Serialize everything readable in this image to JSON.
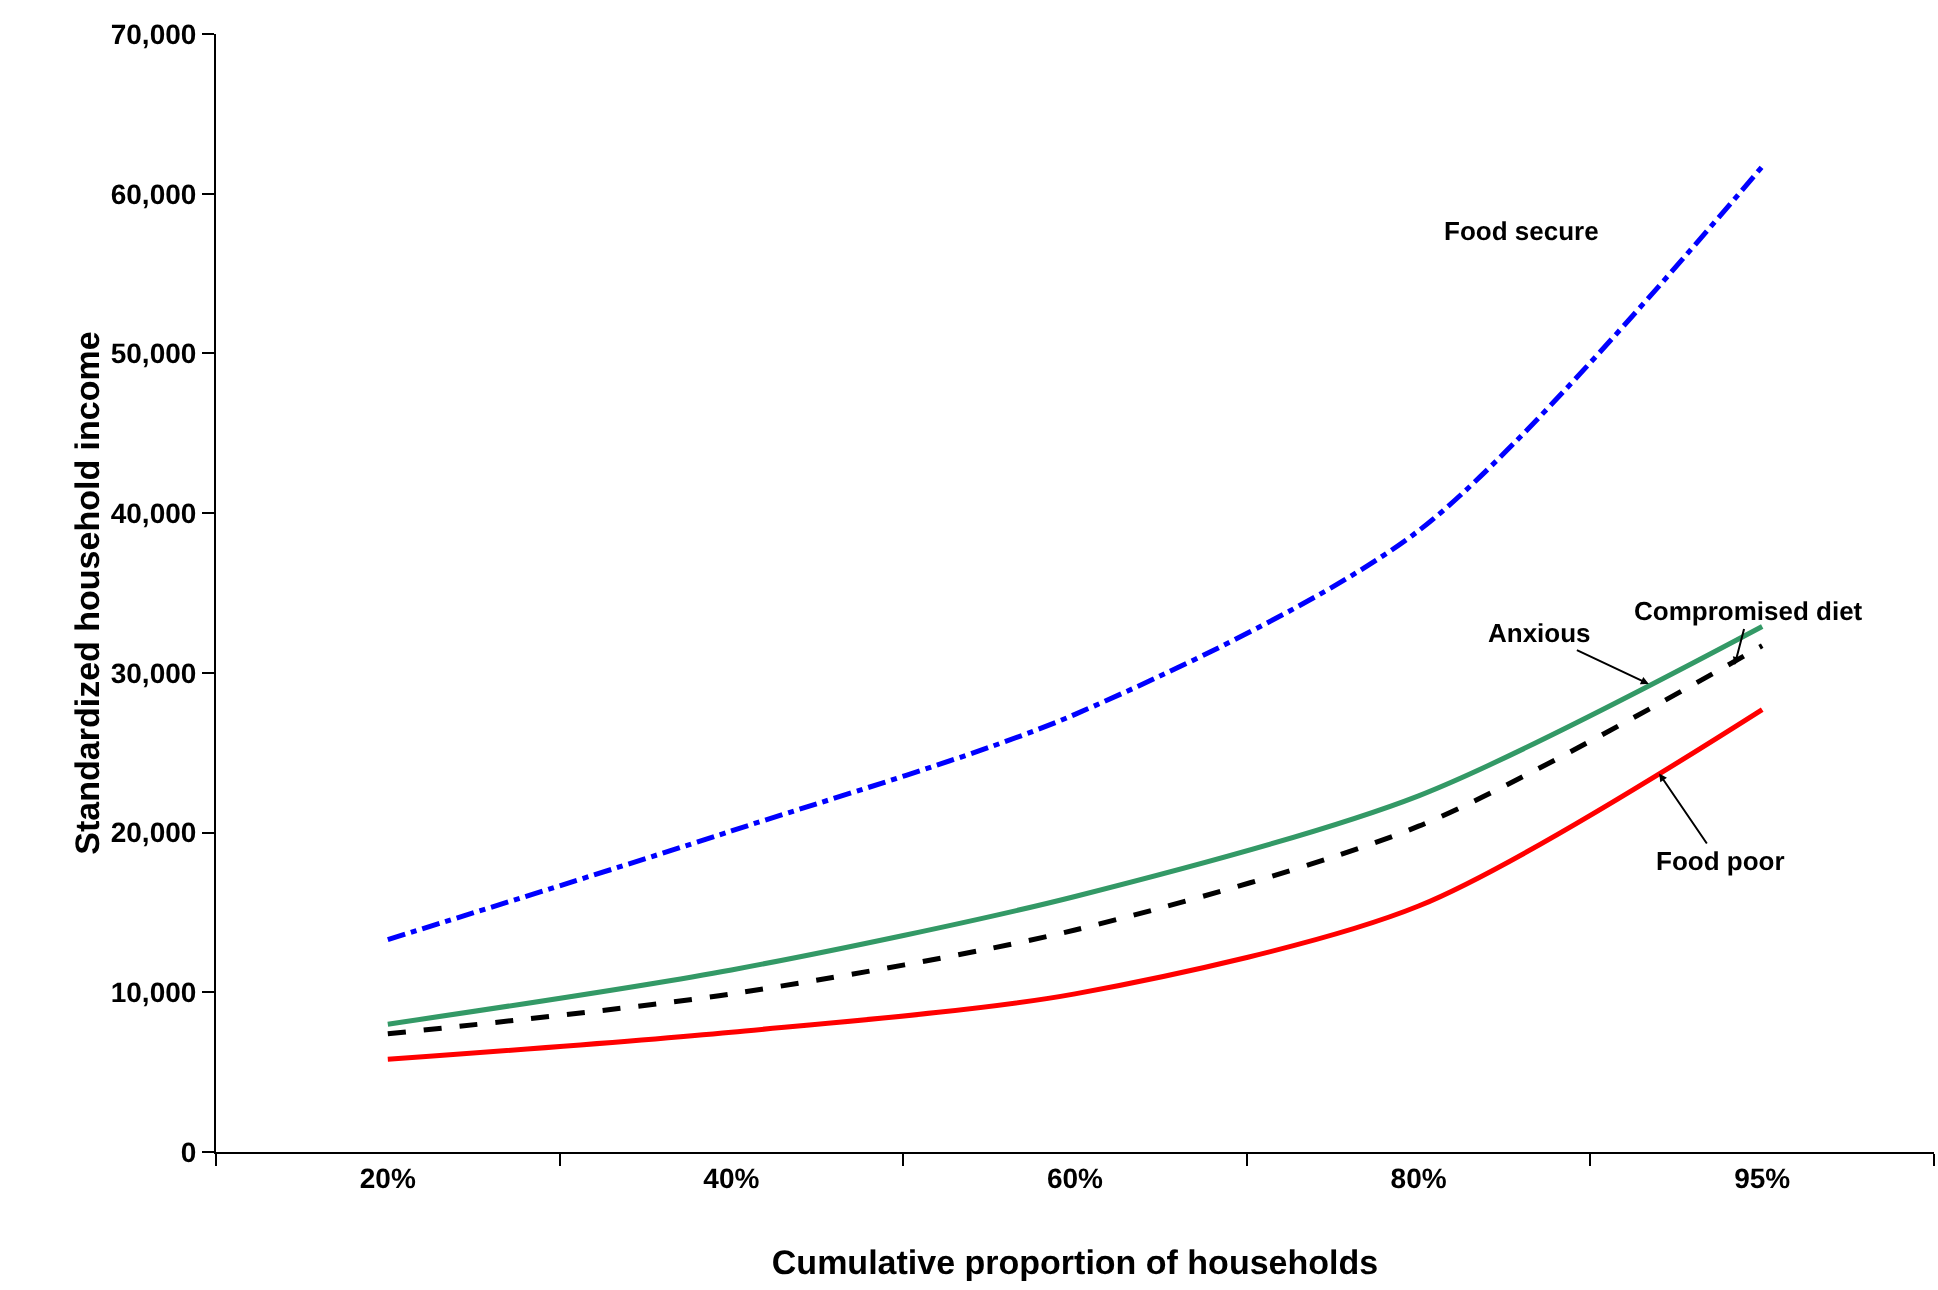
{
  "chart_data": {
    "type": "line",
    "xlabel": "Cumulative proportion of households",
    "ylabel": "Standardized household income",
    "categories": [
      "20%",
      "40%",
      "60%",
      "80%",
      "95%"
    ],
    "series": [
      {
        "name": "Food secure",
        "color": "#0000ff",
        "line_style": "dashdot",
        "values": [
          13300,
          20100,
          27400,
          38900,
          61700
        ]
      },
      {
        "name": "Anxious",
        "color": "#339966",
        "line_style": "solid",
        "values": [
          8000,
          11400,
          16000,
          22300,
          32900
        ]
      },
      {
        "name": "Compromised diet",
        "color": "#000000",
        "line_style": "dashed",
        "values": [
          7400,
          9900,
          13900,
          20400,
          31700
        ]
      },
      {
        "name": "Food poor",
        "color": "#ff0000",
        "line_style": "solid",
        "values": [
          5800,
          7500,
          9900,
          15400,
          27700
        ]
      }
    ],
    "ylim": [
      0,
      70000
    ],
    "yticks": [
      {
        "value": 0,
        "label": "0"
      },
      {
        "value": 10000,
        "label": "10,000"
      },
      {
        "value": 20000,
        "label": "20,000"
      },
      {
        "value": 30000,
        "label": "30,000"
      },
      {
        "value": 40000,
        "label": "40,000"
      },
      {
        "value": 50000,
        "label": "50,000"
      },
      {
        "value": 60000,
        "label": "60,000"
      },
      {
        "value": 70000,
        "label": "70,000"
      }
    ],
    "grid": false,
    "legend": false,
    "marker": "none"
  }
}
